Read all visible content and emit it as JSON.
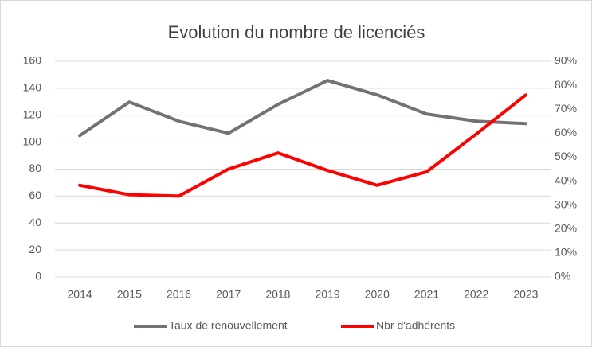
{
  "chart_data": {
    "type": "line",
    "title": "Evolution du nombre de licenciés",
    "categories": [
      "2014",
      "2015",
      "2016",
      "2017",
      "2018",
      "2019",
      "2020",
      "2021",
      "2022",
      "2023"
    ],
    "series": [
      {
        "name": "Taux de renouvellement",
        "color": "#767171",
        "axis": "y2",
        "values": [
          59,
          73,
          65,
          60,
          72,
          82,
          76,
          68,
          65,
          64
        ]
      },
      {
        "name": "Nbr d'adhérents",
        "color": "#ff0000",
        "values": [
          68,
          61,
          60,
          80,
          92,
          79,
          68,
          78,
          106,
          135
        ]
      }
    ],
    "ylim": [
      0,
      160
    ],
    "yticks": [
      0,
      20,
      40,
      60,
      80,
      100,
      120,
      140,
      160
    ],
    "y2lim": [
      0,
      90
    ],
    "y2ticks": [
      {
        "value": 0,
        "label": "0%"
      },
      {
        "value": 10,
        "label": "10%"
      },
      {
        "value": 20,
        "label": "20%"
      },
      {
        "value": 30,
        "label": "30%"
      },
      {
        "value": 40,
        "label": "40%"
      },
      {
        "value": 50,
        "label": "50%"
      },
      {
        "value": 60,
        "label": "60%"
      },
      {
        "value": 70,
        "label": "70%"
      },
      {
        "value": 80,
        "label": "80%"
      },
      {
        "value": 90,
        "label": "90%"
      }
    ],
    "grid": true,
    "legend": "bottom"
  }
}
